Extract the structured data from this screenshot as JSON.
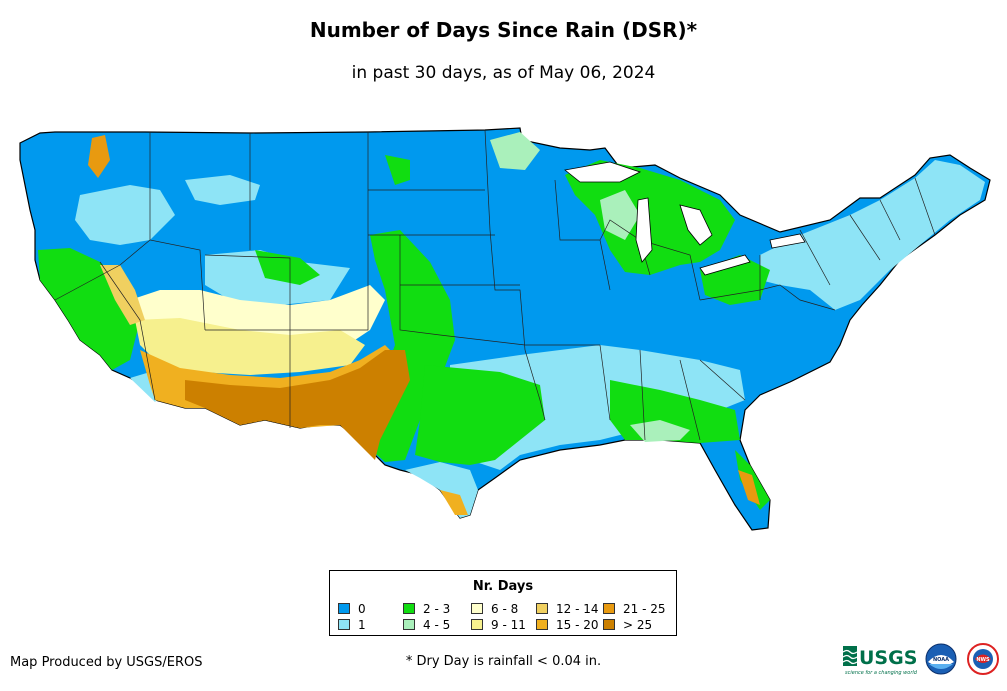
{
  "title": "Number of Days Since Rain (DSR)*",
  "subtitle": "in past 30 days, as of May 06, 2024",
  "legend": {
    "title": "Nr. Days",
    "items": [
      {
        "label": "0",
        "color": "#0099ee"
      },
      {
        "label": "1",
        "color": "#8ee4f6"
      },
      {
        "label": "2 - 3",
        "color": "#11dd11"
      },
      {
        "label": "4 - 5",
        "color": "#aaf0bb"
      },
      {
        "label": "6 - 8",
        "color": "#ffffcc"
      },
      {
        "label": "9 - 11",
        "color": "#f6f08e"
      },
      {
        "label": "12 - 14",
        "color": "#f0d060"
      },
      {
        "label": "15 - 20",
        "color": "#f0b020"
      },
      {
        "label": "21 - 25",
        "color": "#e89a10"
      },
      {
        "label": "> 25",
        "color": "#cc8000"
      }
    ]
  },
  "credit": "Map Produced by USGS/EROS",
  "footnote": "* Dry Day is rainfall < 0.04 in.",
  "logos": {
    "usgs": {
      "text": "USGS",
      "tagline": "science for a changing world"
    },
    "noaa": {
      "text": "NOAA"
    },
    "nws": {
      "text": "NWS"
    }
  }
}
